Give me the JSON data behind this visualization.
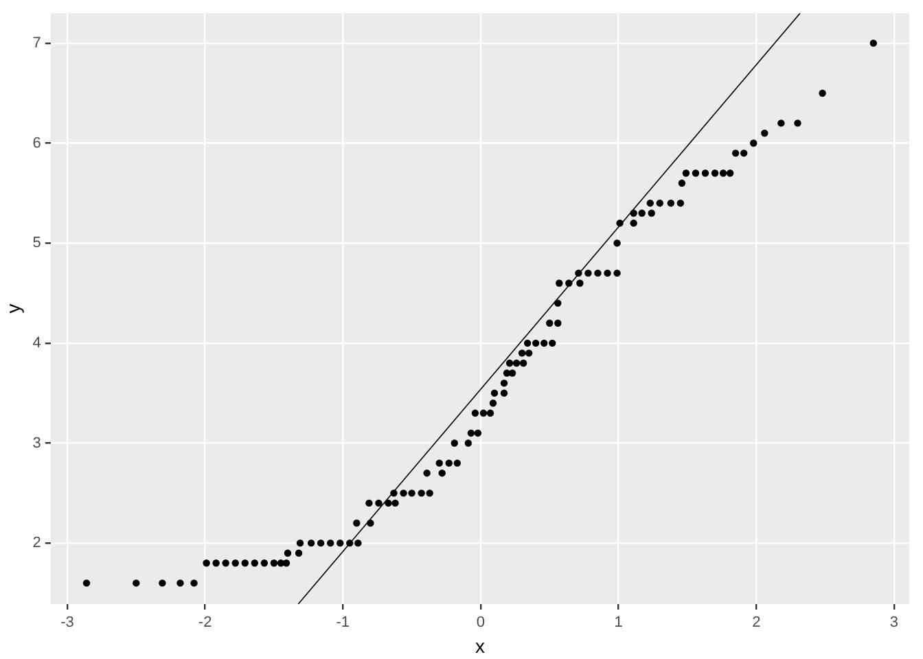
{
  "chart_data": {
    "type": "scatter",
    "xlabel": "x",
    "ylabel": "y",
    "xlim": [
      -3.12,
      3.11
    ],
    "ylim": [
      1.39,
      7.3
    ],
    "xticks": [
      -3,
      -2,
      -1,
      0,
      1,
      2,
      3
    ],
    "yticks": [
      2,
      3,
      4,
      5,
      6,
      7
    ],
    "grid": true,
    "legend": false,
    "marker": "circle",
    "series": [
      {
        "color": "#000000",
        "x": [
          -2.86,
          -2.5,
          -2.31,
          -2.18,
          -2.08,
          -1.99,
          -1.92,
          -1.85,
          -1.78,
          -1.71,
          -1.64,
          -1.57,
          -1.5,
          -1.45,
          -1.41,
          -1.4,
          -1.32,
          -1.31,
          -1.23,
          -1.16,
          -1.09,
          -1.02,
          -0.95,
          -0.89,
          -0.9,
          -0.8,
          -0.81,
          -0.74,
          -0.67,
          -0.62,
          -0.63,
          -0.56,
          -0.5,
          -0.43,
          -0.37,
          -0.39,
          -0.28,
          -0.3,
          -0.23,
          -0.17,
          -0.19,
          -0.09,
          -0.07,
          -0.02,
          -0.04,
          0.02,
          0.07,
          0.09,
          0.1,
          0.17,
          0.17,
          0.19,
          0.23,
          0.21,
          0.26,
          0.31,
          0.3,
          0.35,
          0.34,
          0.4,
          0.46,
          0.52,
          0.5,
          0.56,
          0.56,
          0.57,
          0.64,
          0.72,
          0.71,
          0.78,
          0.85,
          0.92,
          0.99,
          0.99,
          1.01,
          1.11,
          1.11,
          1.17,
          1.24,
          1.23,
          1.3,
          1.38,
          1.45,
          1.46,
          1.49,
          1.56,
          1.63,
          1.7,
          1.76,
          1.81,
          1.85,
          1.91,
          1.98,
          2.06,
          2.18,
          2.3,
          2.48,
          2.85
        ],
        "values": [
          1.6,
          1.6,
          1.6,
          1.6,
          1.6,
          1.8,
          1.8,
          1.8,
          1.8,
          1.8,
          1.8,
          1.8,
          1.8,
          1.8,
          1.8,
          1.9,
          1.9,
          2,
          2,
          2,
          2,
          2,
          2,
          2,
          2.2,
          2.2,
          2.4,
          2.4,
          2.4,
          2.4,
          2.5,
          2.5,
          2.5,
          2.5,
          2.5,
          2.7,
          2.7,
          2.8,
          2.8,
          2.8,
          3,
          3,
          3.1,
          3.1,
          3.3,
          3.3,
          3.3,
          3.4,
          3.5,
          3.5,
          3.6,
          3.7,
          3.7,
          3.8,
          3.8,
          3.8,
          3.9,
          3.9,
          4,
          4,
          4,
          4,
          4.2,
          4.2,
          4.4,
          4.6,
          4.6,
          4.6,
          4.7,
          4.7,
          4.7,
          4.7,
          4.7,
          5,
          5.2,
          5.2,
          5.3,
          5.3,
          5.3,
          5.4,
          5.4,
          5.4,
          5.4,
          5.6,
          5.7,
          5.7,
          5.7,
          5.7,
          5.7,
          5.7,
          5.9,
          5.9,
          6,
          6.1,
          6.2,
          6.2,
          6.5,
          7
        ]
      },
      {
        "type": "line",
        "marker": "none",
        "color": "#000000",
        "x": [
          -1.324,
          2.318
        ],
        "values": [
          1.39,
          7.3
        ]
      }
    ]
  }
}
